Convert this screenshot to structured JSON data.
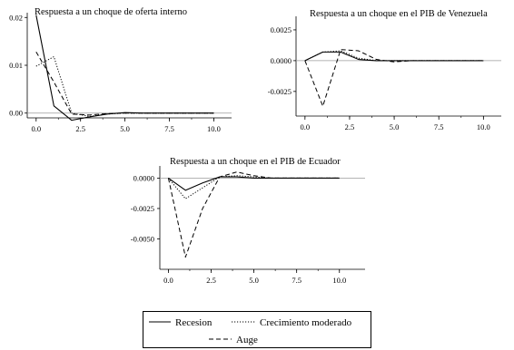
{
  "chart_data": [
    {
      "type": "line",
      "title": "Respuesta a un choque de oferta interno",
      "x": [
        0,
        1,
        2,
        3,
        4,
        5,
        6,
        7,
        8,
        9,
        10
      ],
      "xticks": [
        "0.0",
        "2.5",
        "5.0",
        "7.5",
        "10.0"
      ],
      "yticks": [
        "0.00",
        "0.01",
        "0.02"
      ],
      "xlim": [
        -0.5,
        11
      ],
      "ylim": [
        -0.001,
        0.021
      ],
      "series": [
        {
          "name": "Recesion",
          "values": [
            0.0205,
            0.0015,
            -0.0015,
            -0.0008,
            -0.0002,
            0.0001,
            0.0,
            0.0,
            0.0,
            0.0,
            0.0
          ]
        },
        {
          "name": "Crecimiento moderado",
          "values": [
            0.0098,
            0.0118,
            0.0,
            -0.0007,
            -0.0002,
            0.0,
            0.0,
            0.0,
            0.0,
            0.0,
            0.0
          ]
        },
        {
          "name": "Auge",
          "values": [
            0.0128,
            0.0065,
            -0.0002,
            -0.0004,
            -0.0001,
            0.0,
            0.0,
            0.0,
            0.0,
            0.0,
            0.0
          ]
        }
      ]
    },
    {
      "type": "line",
      "title": "Respuesta a un choque en el PIB de Venezuela",
      "x": [
        0,
        1,
        2,
        3,
        4,
        5,
        6,
        7,
        8,
        9,
        10
      ],
      "xticks": [
        "0.0",
        "2.5",
        "5.0",
        "7.5",
        "10.0"
      ],
      "yticks": [
        "0.0025",
        "0.0000",
        "-0.0025"
      ],
      "xlim": [
        -0.5,
        11
      ],
      "ylim": [
        -0.0045,
        0.0036
      ],
      "series": [
        {
          "name": "Recesion",
          "values": [
            0.0,
            0.0007,
            0.0007,
            0.0001,
            0.0,
            0.0,
            0.0,
            0.0,
            0.0,
            0.0,
            0.0
          ]
        },
        {
          "name": "Crecimiento moderado",
          "values": [
            0.0,
            0.0007,
            0.0008,
            0.0002,
            0.0,
            0.0,
            0.0,
            0.0,
            0.0,
            0.0,
            0.0
          ]
        },
        {
          "name": "Auge",
          "values": [
            0.0,
            -0.0037,
            0.0009,
            0.0008,
            0.0001,
            -0.0001,
            0.0,
            0.0,
            0.0,
            0.0,
            0.0
          ]
        }
      ]
    },
    {
      "type": "line",
      "title": "Respuesta a un choque en el PIB de Ecuador",
      "x": [
        0,
        1,
        2,
        3,
        4,
        5,
        6,
        7,
        8,
        9,
        10
      ],
      "xticks": [
        "0.0",
        "2.5",
        "5.0",
        "7.5",
        "10.0"
      ],
      "yticks": [
        "0.0000",
        "-0.0025",
        "-0.0050"
      ],
      "xlim": [
        -0.5,
        11.5
      ],
      "ylim": [
        -0.0075,
        0.001
      ],
      "series": [
        {
          "name": "Recesion",
          "values": [
            0.0,
            -0.001,
            -0.0004,
            0.0001,
            0.0001,
            0.0,
            0.0,
            0.0,
            0.0,
            0.0,
            0.0
          ]
        },
        {
          "name": "Crecimiento moderado",
          "values": [
            0.0,
            -0.0017,
            -0.0008,
            0.0001,
            0.0002,
            0.0001,
            0.0,
            0.0,
            0.0,
            0.0,
            0.0
          ]
        },
        {
          "name": "Auge",
          "values": [
            0.0,
            -0.0065,
            -0.0025,
            0.0001,
            0.0005,
            0.0002,
            0.0,
            0.0,
            0.0,
            0.0,
            0.0
          ]
        }
      ]
    }
  ],
  "legend": {
    "items": [
      {
        "label": "Recesion",
        "dash": "solid"
      },
      {
        "label": "Crecimiento moderado",
        "dash": "dotted"
      },
      {
        "label": "Auge",
        "dash": "dashed"
      }
    ]
  }
}
